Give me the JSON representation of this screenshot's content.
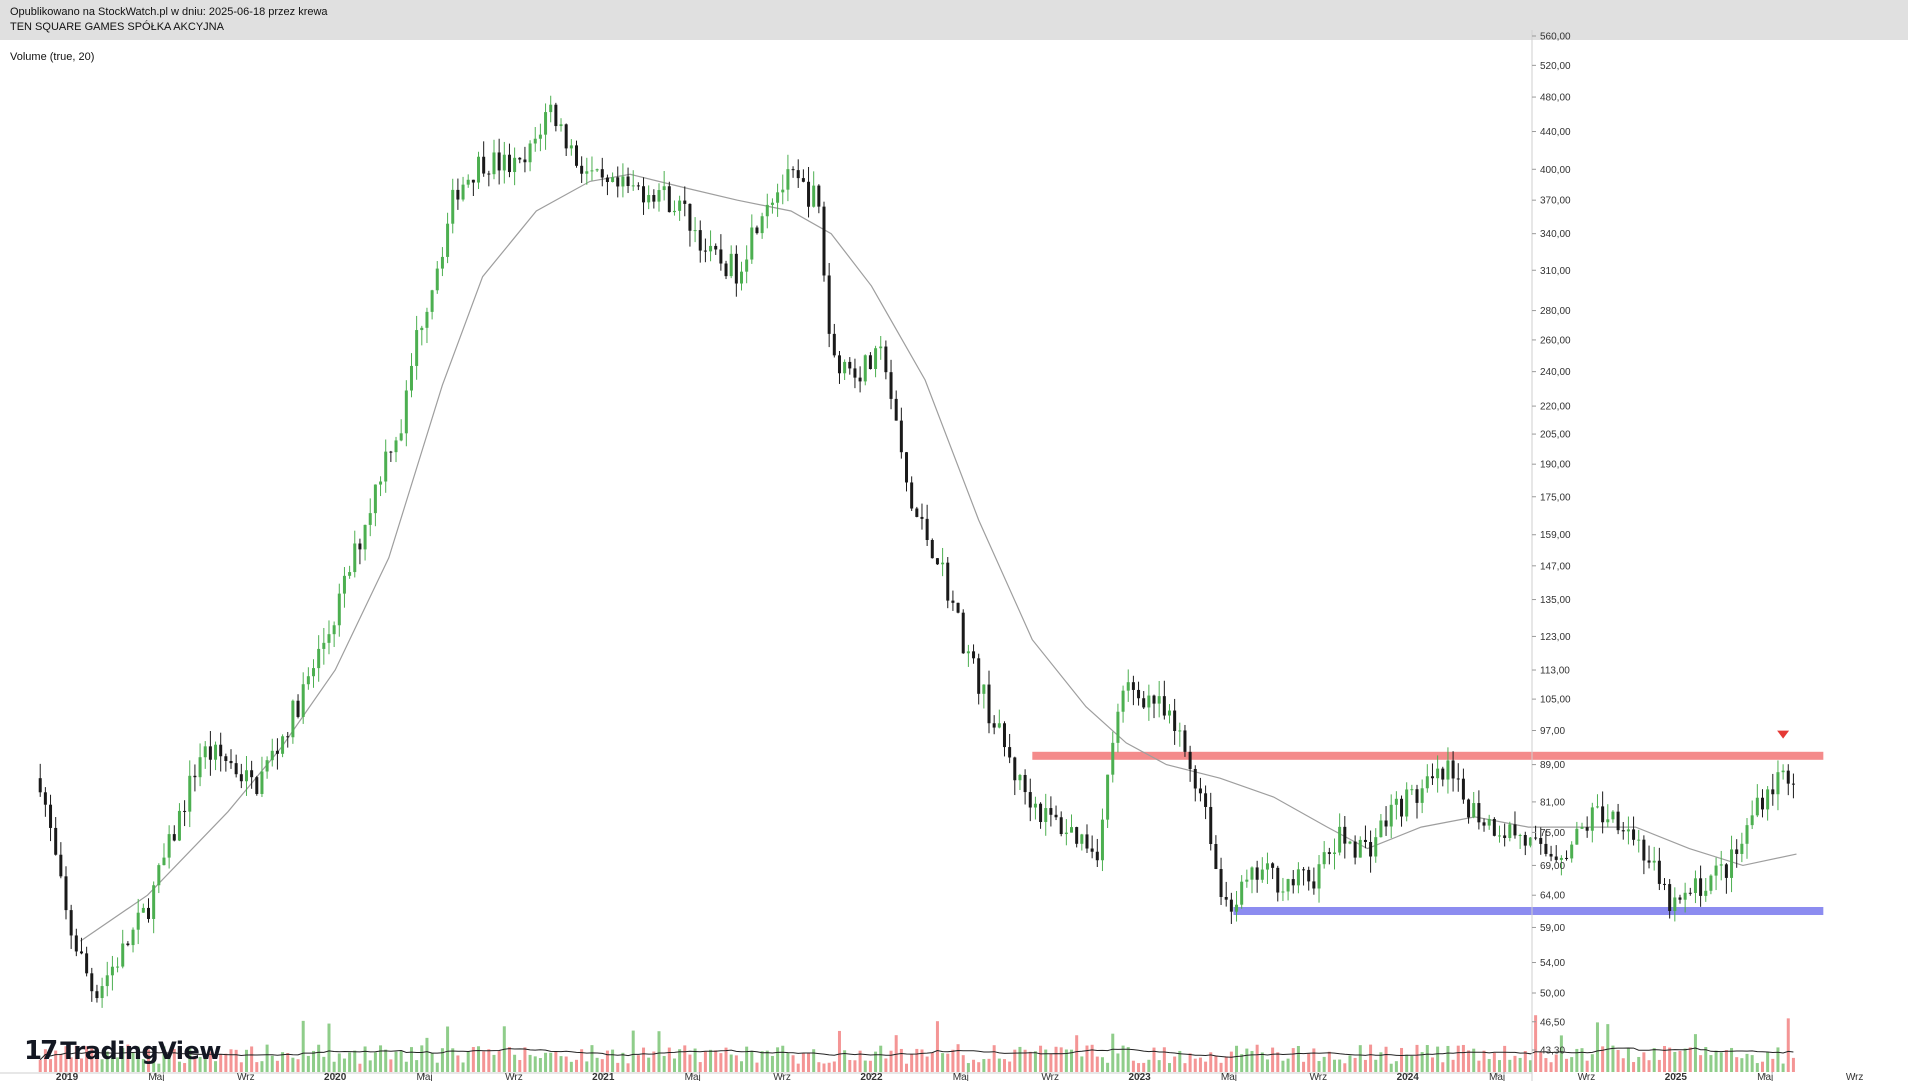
{
  "header": {
    "published": "Opublikowano na StockWatch.pl w dniu: 2025-06-18 przez krewa",
    "ticker": "TEN SQUARE GAMES SPÓŁKA AKCYJNA"
  },
  "indicator_label": "Volume (true, 20)",
  "logo": {
    "mark": "17",
    "text": "TradingView"
  },
  "colors": {
    "up": "#4caf50",
    "down": "#1a1a1a",
    "vol_up": "#8fcd8a",
    "vol_down": "#f49595",
    "ma": "#9e9e9e",
    "resistance": "#f48b8b",
    "support": "#8c8cf0",
    "marker": "#e53935"
  },
  "chart_data": {
    "type": "candlestick",
    "scale": "log",
    "price_ticks": [
      "560,00",
      "520,00",
      "480,00",
      "440,00",
      "400,00",
      "370,00",
      "340,00",
      "310,00",
      "280,00",
      "260,00",
      "240,00",
      "220,00",
      "205,00",
      "190,00",
      "175,00",
      "159,00",
      "147,00",
      "135,00",
      "123,00",
      "113,00",
      "105,00",
      "97,00",
      "89,00",
      "81,00",
      "75,00",
      "69,00",
      "64,00",
      "59,00",
      "54,00",
      "50,00",
      "46,50",
      "43,30"
    ],
    "time_labels": [
      "2019",
      "Maj",
      "Wrz",
      "2020",
      "Maj",
      "Wrz",
      "2021",
      "Maj",
      "Wrz",
      "2022",
      "Maj",
      "Wrz",
      "2023",
      "Maj",
      "Wrz",
      "2024",
      "Maj",
      "Wrz",
      "2025",
      "Maj",
      "Wrz"
    ],
    "time_label_years": [
      "2019",
      "2020",
      "2021",
      "2022",
      "2023",
      "2024",
      "2025"
    ],
    "x_range": [
      "2018-10",
      "2025-10"
    ],
    "price_path": [
      [
        2018.9,
        86
      ],
      [
        2019.0,
        60
      ],
      [
        2019.1,
        50
      ],
      [
        2019.2,
        55
      ],
      [
        2019.3,
        62
      ],
      [
        2019.4,
        75
      ],
      [
        2019.5,
        92
      ],
      [
        2019.6,
        90
      ],
      [
        2019.7,
        84
      ],
      [
        2019.8,
        95
      ],
      [
        2019.9,
        110
      ],
      [
        2020.0,
        130
      ],
      [
        2020.1,
        160
      ],
      [
        2020.2,
        200
      ],
      [
        2020.25,
        210
      ],
      [
        2020.3,
        260
      ],
      [
        2020.4,
        330
      ],
      [
        2020.45,
        380
      ],
      [
        2020.55,
        410
      ],
      [
        2020.7,
        400
      ],
      [
        2020.8,
        470
      ],
      [
        2020.9,
        410
      ],
      [
        2021.0,
        380
      ],
      [
        2021.1,
        380
      ],
      [
        2021.2,
        380
      ],
      [
        2021.3,
        360
      ],
      [
        2021.4,
        320
      ],
      [
        2021.5,
        310
      ],
      [
        2021.6,
        370
      ],
      [
        2021.7,
        390
      ],
      [
        2021.8,
        370
      ],
      [
        2021.85,
        250
      ],
      [
        2021.95,
        240
      ],
      [
        2022.05,
        250
      ],
      [
        2022.1,
        200
      ],
      [
        2022.15,
        170
      ],
      [
        2022.25,
        150
      ],
      [
        2022.35,
        120
      ],
      [
        2022.45,
        100
      ],
      [
        2022.55,
        85
      ],
      [
        2022.65,
        78
      ],
      [
        2022.75,
        75
      ],
      [
        2022.85,
        72
      ],
      [
        2022.9,
        95
      ],
      [
        2022.95,
        108
      ],
      [
        2023.05,
        105
      ],
      [
        2023.15,
        95
      ],
      [
        2023.25,
        80
      ],
      [
        2023.3,
        64
      ],
      [
        2023.35,
        63
      ],
      [
        2023.45,
        68
      ],
      [
        2023.55,
        66
      ],
      [
        2023.65,
        67
      ],
      [
        2023.75,
        74
      ],
      [
        2023.85,
        72
      ],
      [
        2023.95,
        80
      ],
      [
        2024.05,
        83
      ],
      [
        2024.15,
        87
      ],
      [
        2024.2,
        82
      ],
      [
        2024.3,
        77
      ],
      [
        2024.4,
        75
      ],
      [
        2024.5,
        71
      ],
      [
        2024.6,
        72
      ],
      [
        2024.7,
        79
      ],
      [
        2024.8,
        78
      ],
      [
        2024.9,
        70
      ],
      [
        2024.95,
        64
      ],
      [
        2025.0,
        62
      ],
      [
        2025.1,
        66
      ],
      [
        2025.2,
        69
      ],
      [
        2025.25,
        73
      ],
      [
        2025.3,
        81
      ],
      [
        2025.4,
        87
      ]
    ],
    "moving_average": [
      [
        2019.05,
        57
      ],
      [
        2019.3,
        64
      ],
      [
        2019.6,
        79
      ],
      [
        2019.8,
        93
      ],
      [
        2020.0,
        113
      ],
      [
        2020.2,
        150
      ],
      [
        2020.4,
        232
      ],
      [
        2020.55,
        305
      ],
      [
        2020.75,
        360
      ],
      [
        2020.95,
        388
      ],
      [
        2021.1,
        395
      ],
      [
        2021.3,
        382
      ],
      [
        2021.5,
        370
      ],
      [
        2021.7,
        360
      ],
      [
        2021.85,
        340
      ],
      [
        2022.0,
        298
      ],
      [
        2022.2,
        235
      ],
      [
        2022.4,
        165
      ],
      [
        2022.6,
        122
      ],
      [
        2022.8,
        103
      ],
      [
        2022.95,
        94
      ],
      [
        2023.1,
        89
      ],
      [
        2023.3,
        86
      ],
      [
        2023.5,
        82
      ],
      [
        2023.7,
        76
      ],
      [
        2023.85,
        72
      ],
      [
        2024.05,
        76
      ],
      [
        2024.25,
        78
      ],
      [
        2024.45,
        76
      ],
      [
        2024.65,
        76
      ],
      [
        2024.85,
        76
      ],
      [
        2025.05,
        72
      ],
      [
        2025.25,
        69
      ],
      [
        2025.45,
        71
      ]
    ],
    "resistance_level": 91,
    "resistance_range": [
      2022.6,
      2025.55
    ],
    "support_level": 61.5,
    "support_range": [
      2023.35,
      2025.55
    ],
    "sell_marker": {
      "x": 2025.4,
      "price": 96
    }
  }
}
